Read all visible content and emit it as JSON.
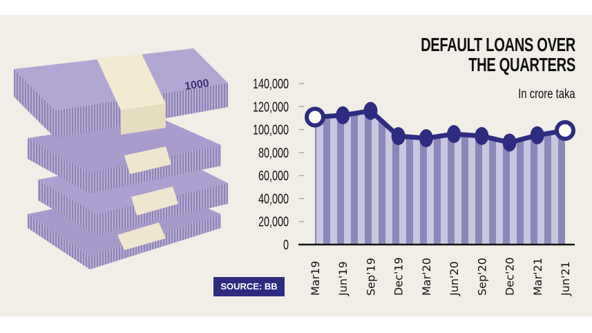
{
  "title_line1": "DEFAULT LOANS OVER",
  "title_line2": "THE QUARTERS",
  "subtitle": "In crore taka",
  "source": "SOURCE: BB",
  "colors": {
    "background": "#f1eee7",
    "line": "#2e2c80",
    "bar_dark": "#8b87b8",
    "bar_light": "#c9c6df",
    "source_badge": "#2e2c80"
  },
  "illustration": "stacks of 1000 taka banknotes",
  "chart_data": {
    "type": "line",
    "title": "DEFAULT LOANS OVER THE QUARTERS",
    "subtitle": "In crore taka",
    "categories": [
      "Mar19",
      "Jun'19",
      "Sep'19",
      "Dec'19",
      "Mar'20",
      "Jun'20",
      "Sep'20",
      "Dec'20",
      "Mar'21",
      "Jun'21"
    ],
    "values": [
      110874,
      112425,
      116288,
      94331,
      92510,
      96116,
      94440,
      88734,
      95085,
      99205
    ],
    "ylim": [
      0,
      140000
    ],
    "yticks": [
      "0",
      "20,000",
      "40,000",
      "60,000",
      "80,000",
      "100,000",
      "120,000",
      "140,000"
    ],
    "ytick_values": [
      0,
      20000,
      40000,
      60000,
      80000,
      100000,
      120000,
      140000
    ],
    "grid": false,
    "fill": "striped area under line",
    "highlighted_points": [
      "Mar19",
      "Jun'21"
    ]
  }
}
